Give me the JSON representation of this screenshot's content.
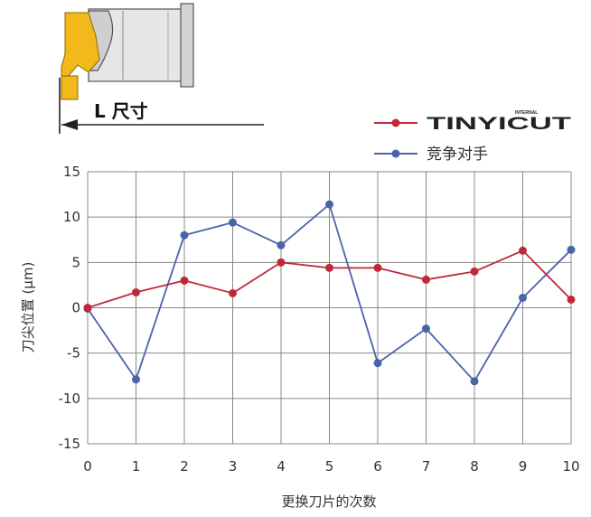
{
  "illustration": {
    "dimension_label": "L 尺寸"
  },
  "legend": {
    "brand_logo": "TINYICUT",
    "brand_logo_sub": "INTERNAL",
    "competitor_label": "竞争对手"
  },
  "colors": {
    "tinyicut": "#c0283a",
    "competitor": "#4b64a8",
    "grid": "#888888",
    "insert": "#f2b81c"
  },
  "chart_data": {
    "type": "line",
    "x": [
      0,
      1,
      2,
      3,
      4,
      5,
      6,
      7,
      8,
      9,
      10
    ],
    "xlabel": "更换刀片的次数",
    "ylabel": "刀尖位置 (μm)",
    "xlim": [
      0,
      10
    ],
    "ylim": [
      -15,
      15
    ],
    "x_ticks": [
      "0",
      "1",
      "2",
      "3",
      "4",
      "5",
      "6",
      "7",
      "8",
      "9",
      "10"
    ],
    "y_ticks": [
      "15",
      "10",
      "5",
      "0",
      "-5",
      "-10",
      "-15"
    ],
    "grid": true,
    "legend_position": "top-right",
    "series": [
      {
        "name": "TINYICUT",
        "values": [
          0,
          1.7,
          3.0,
          1.6,
          5.0,
          4.4,
          4.4,
          3.1,
          4.0,
          6.3,
          0.9
        ]
      },
      {
        "name": "竞争对手",
        "values": [
          -0.1,
          -7.9,
          8.0,
          9.4,
          6.9,
          11.4,
          -6.1,
          -2.3,
          -8.1,
          1.1,
          6.4
        ]
      }
    ]
  }
}
